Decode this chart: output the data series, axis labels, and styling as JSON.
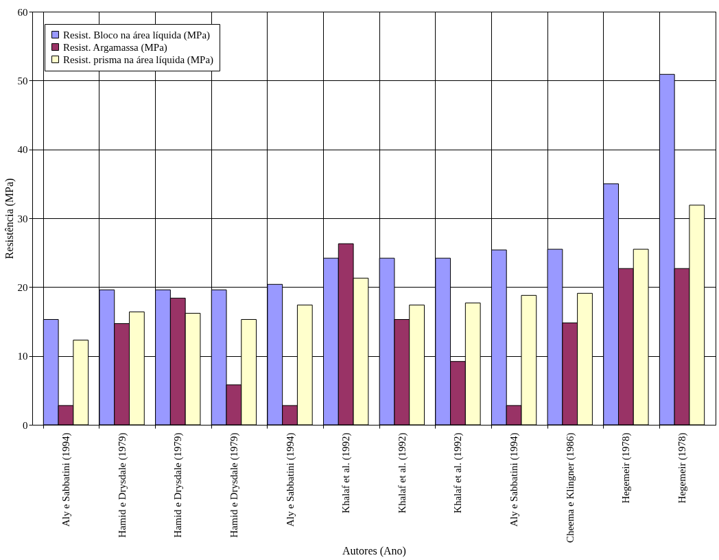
{
  "chart_data": {
    "type": "bar",
    "xlabel": "Autores (Ano)",
    "ylabel": "Resistência (MPa)",
    "categories": [
      "Aly e Sabbatini (1994)",
      "Hamid e Drysdale (1979)",
      "Hamid e Drysdale (1979)",
      "Hamid e Drysdale (1979)",
      "Aly e Sabbatini (1994)",
      "Khalaf et al. (1992)",
      "Khalaf et al. (1992)",
      "Khalaf et al. (1992)",
      "Aly e Sabbatini (1994)",
      "Cheema e Klingner (1986)",
      "Hegemeir (1978)",
      "Hegemeir (1978)"
    ],
    "series": [
      {
        "name": "Resist. Bloco na área líquida (MPa)",
        "color": "#9999ff",
        "values": [
          15.3,
          19.6,
          19.6,
          19.6,
          20.4,
          24.2,
          24.2,
          24.2,
          25.4,
          25.5,
          35.0,
          50.9
        ]
      },
      {
        "name": "Resist. Argamassa (MPa)",
        "color": "#993366",
        "values": [
          2.8,
          14.7,
          18.4,
          5.8,
          2.8,
          26.3,
          15.3,
          9.2,
          2.8,
          14.8,
          22.7,
          22.7
        ]
      },
      {
        "name": "Resist. prisma na área líquida (MPa)",
        "color": "#ffffcc",
        "values": [
          12.3,
          16.4,
          16.2,
          15.3,
          17.4,
          21.3,
          17.4,
          17.7,
          18.8,
          19.1,
          25.5,
          31.9
        ]
      }
    ],
    "ylim": [
      0,
      60
    ],
    "yticks": [
      0,
      10,
      20,
      30,
      40,
      50,
      60
    ],
    "grid": true,
    "legend": "top left"
  }
}
